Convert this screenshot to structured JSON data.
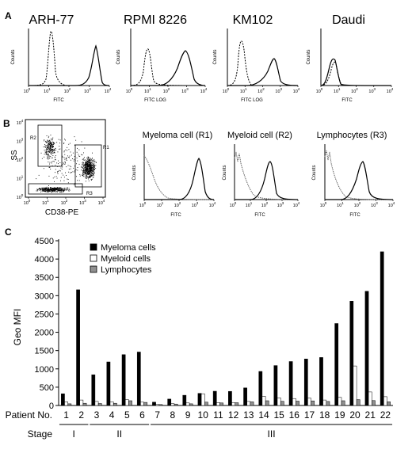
{
  "panels": {
    "a": {
      "label": "A",
      "plots": [
        {
          "title": "ARH-77",
          "xlabel": "FITC",
          "ylabel": "Counts"
        },
        {
          "title": "RPMI 8226",
          "xlabel": "FITC LOG",
          "ylabel": "Counts"
        },
        {
          "title": "KM102",
          "xlabel": "FITC LOG",
          "ylabel": "Counts"
        },
        {
          "title": "Daudi",
          "xlabel": "FITC",
          "ylabel": "Counts"
        }
      ]
    },
    "b": {
      "label": "B",
      "scatter": {
        "ylabel": "SS",
        "xlabel": "CD38-PE",
        "gates": [
          "R2",
          "R1",
          "R3"
        ]
      },
      "plots": [
        {
          "title": "Myeloma cell (R1)",
          "xlabel": "FITC",
          "ylabel": "Counts"
        },
        {
          "title": "Myeloid cell (R2)",
          "xlabel": "FITC",
          "ylabel": "Counts"
        },
        {
          "title": "Lymphocytes (R3)",
          "xlabel": "FITC",
          "ylabel": "Counts"
        }
      ]
    },
    "c": {
      "label": "C"
    }
  },
  "log_ticks": {
    "exponents": [
      "0",
      "1",
      "2",
      "3",
      "4"
    ],
    "base": "10"
  },
  "chart_data": {
    "type": "bar",
    "ylabel": "Geo MFI",
    "ylim": [
      0,
      4500
    ],
    "yticks": [
      "0",
      "500",
      "1000",
      "1500",
      "2000",
      "2500",
      "3000",
      "3500",
      "4000",
      "4500"
    ],
    "x_title": "Patient No.",
    "categories": [
      "1",
      "2",
      "3",
      "4",
      "5",
      "6",
      "7",
      "8",
      "9",
      "10",
      "11",
      "12",
      "13",
      "14",
      "15",
      "16",
      "17",
      "18",
      "19",
      "20",
      "21",
      "22"
    ],
    "series": [
      {
        "name": "Myeloma cells",
        "color": "#000000",
        "values": [
          320,
          3160,
          840,
          1190,
          1390,
          1460,
          90,
          175,
          280,
          330,
          390,
          385,
          480,
          930,
          1090,
          1200,
          1270,
          1310,
          2240,
          2850,
          3120,
          4200
        ]
      },
      {
        "name": "Myeloid cells",
        "color": "#ffffff",
        "values": [
          100,
          150,
          110,
          100,
          160,
          90,
          30,
          50,
          70,
          320,
          80,
          80,
          110,
          250,
          210,
          190,
          200,
          150,
          220,
          1080,
          370,
          240
        ]
      },
      {
        "name": "Lymphocytes",
        "color": "#909090",
        "values": [
          45,
          60,
          55,
          60,
          130,
          85,
          25,
          40,
          45,
          90,
          70,
          75,
          100,
          130,
          115,
          120,
          125,
          110,
          130,
          160,
          135,
          100
        ]
      }
    ],
    "legend": "top-left",
    "stage_title": "Stage",
    "stages": [
      {
        "label": "I",
        "from": "1",
        "to": "2"
      },
      {
        "label": "II",
        "from": "3",
        "to": "6"
      },
      {
        "label": "III",
        "from": "7",
        "to": "22"
      }
    ]
  }
}
